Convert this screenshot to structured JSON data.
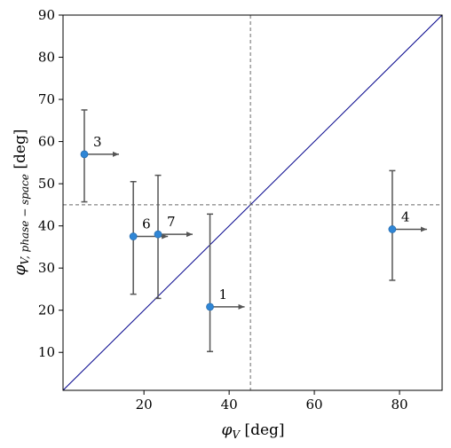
{
  "chart_data": {
    "type": "scatter",
    "xlabel_symbol": "φ",
    "xlabel_sub": "V",
    "xlabel_unit": " [deg]",
    "ylabel_symbol": "φ",
    "ylabel_sub": "V, phase − space",
    "ylabel_unit": " [deg]",
    "xlim": [
      1,
      90
    ],
    "ylim": [
      1,
      90
    ],
    "xticks": [
      20,
      40,
      60,
      80
    ],
    "yticks": [
      10,
      20,
      30,
      40,
      50,
      60,
      70,
      80,
      90
    ],
    "grid": false,
    "reference_lines": {
      "vertical_x": 45,
      "horizontal_y": 45,
      "diagonal": "y = x"
    },
    "points": [
      {
        "label": "3",
        "x": 6,
        "y": 57,
        "y_err_low": 45.7,
        "y_err_high": 67.5,
        "x_lower_limit": true
      },
      {
        "label": "6",
        "x": 17.5,
        "y": 37.5,
        "y_err_low": 23.8,
        "y_err_high": 50.5,
        "x_lower_limit": true
      },
      {
        "label": "7",
        "x": 23.3,
        "y": 38,
        "y_err_low": 22.8,
        "y_err_high": 52,
        "x_lower_limit": true
      },
      {
        "label": "1",
        "x": 35.5,
        "y": 20.8,
        "y_err_low": 10.2,
        "y_err_high": 42.8,
        "x_lower_limit": true
      },
      {
        "label": "4",
        "x": 78.3,
        "y": 39.2,
        "y_err_low": 27.1,
        "y_err_high": 53.1,
        "x_lower_limit": true
      }
    ],
    "colors": {
      "marker": "#2f86d6",
      "errorbar": "#555555",
      "diagonal": "#00008b",
      "dashed": "#666666"
    }
  }
}
